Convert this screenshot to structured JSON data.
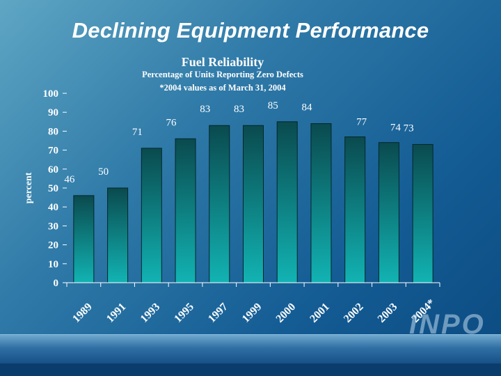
{
  "slide": {
    "title": "Declining Equipment Performance",
    "logo_text": "INPO"
  },
  "chart_data": {
    "type": "bar",
    "title": "Fuel Reliability",
    "subtitle_lines": [
      "Percentage of Units Reporting Zero Defects",
      "*2004 values as of March 31, 2004"
    ],
    "ylabel": "percent",
    "xlabel": "",
    "ylim": [
      0,
      100
    ],
    "yticks": [
      0,
      10,
      20,
      30,
      40,
      50,
      60,
      70,
      80,
      90,
      100
    ],
    "categories": [
      "1989",
      "1991",
      "1993",
      "1995",
      "1997",
      "1999",
      "2000",
      "2001",
      "2002",
      "2003",
      "2004*"
    ],
    "values": [
      46,
      50,
      71,
      76,
      83,
      83,
      85,
      84,
      77,
      74,
      73
    ],
    "grid": false,
    "legend": "none",
    "colors": {
      "bar_top": "#0a4a4e",
      "bar_bottom": "#12b3b3",
      "text": "#ffffff"
    }
  }
}
